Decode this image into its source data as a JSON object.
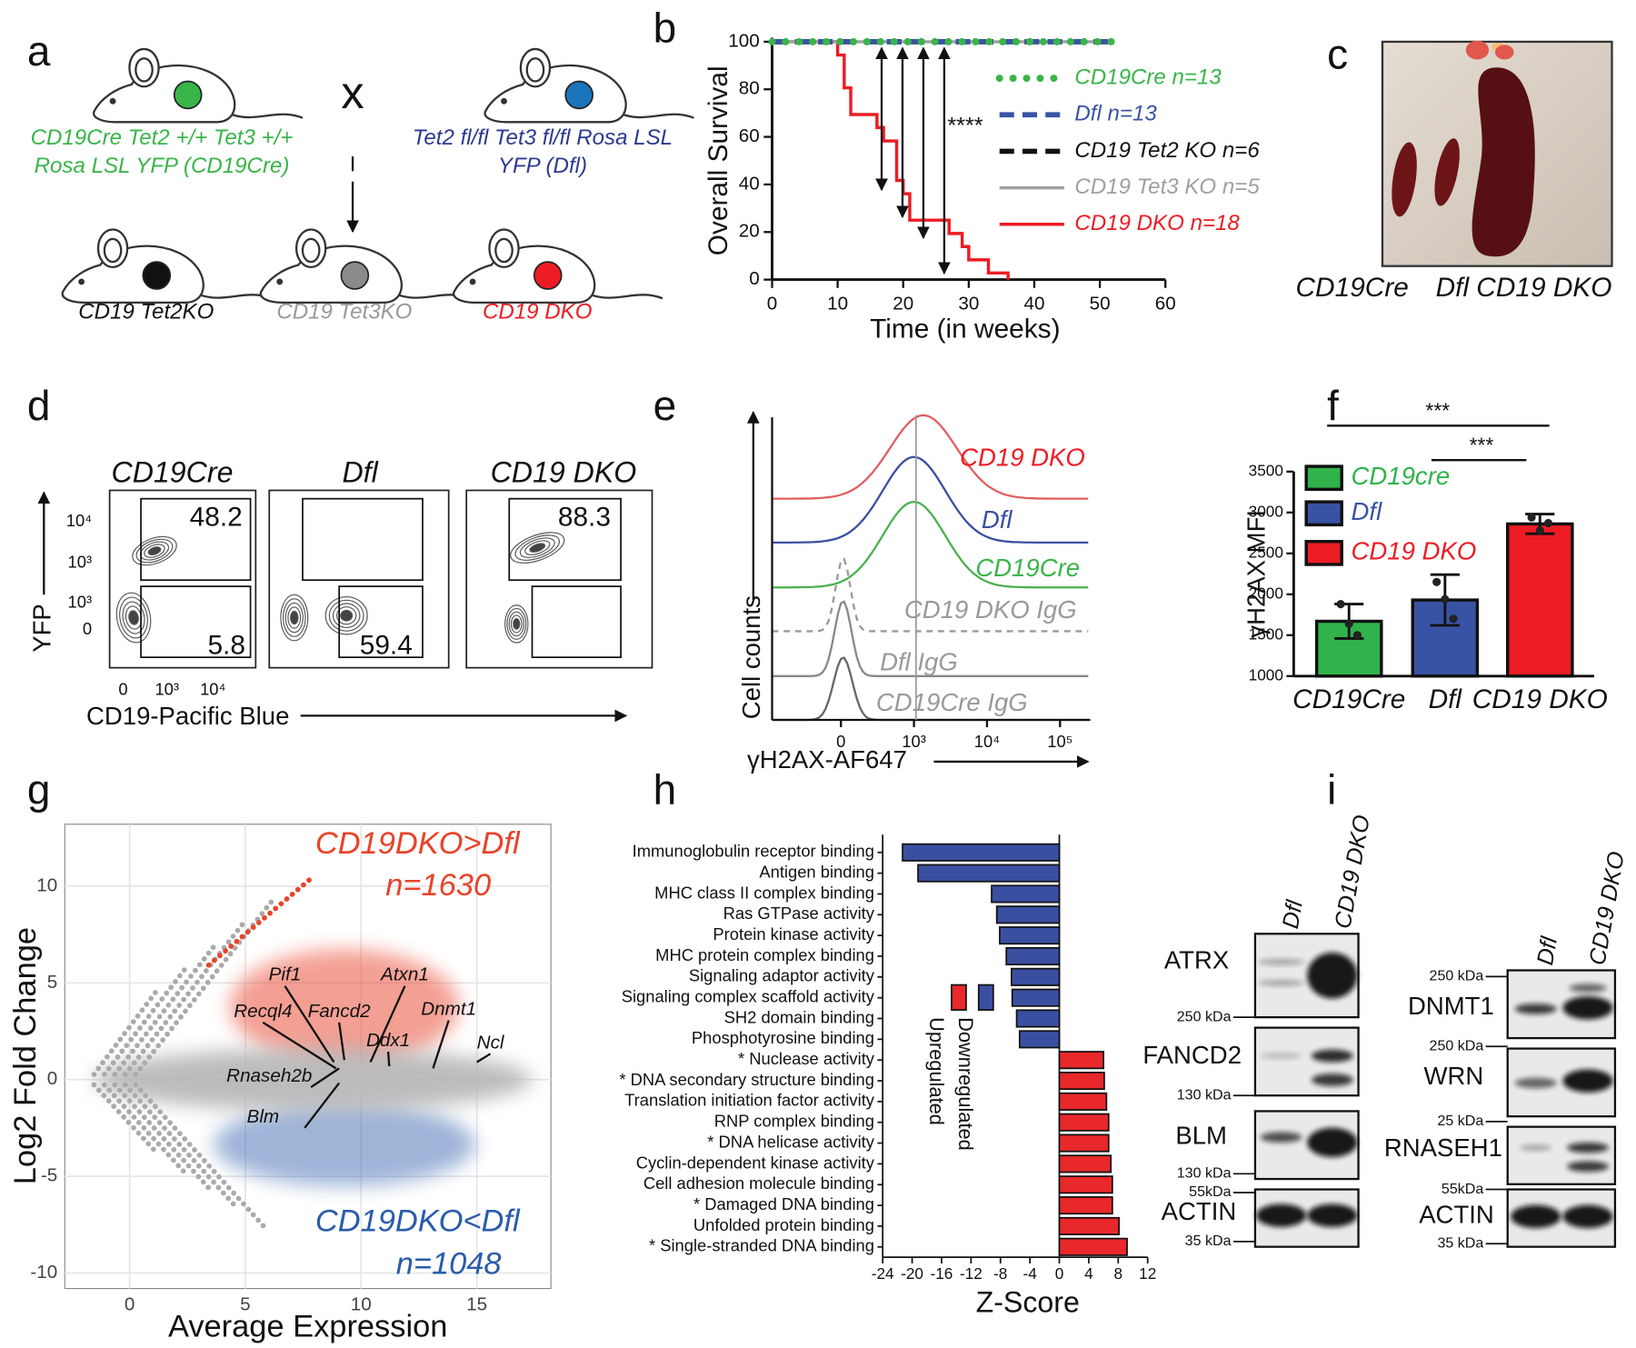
{
  "panel_labels": [
    "a",
    "b",
    "c",
    "d",
    "e",
    "f",
    "g",
    "h",
    "i"
  ],
  "panel_a": {
    "cross": "x",
    "parent1": [
      "CD19Cre Tet2 +/+ Tet3 +/+",
      "Rosa LSL YFP (CD19Cre)"
    ],
    "parent2": [
      "Tet2 fl/fl Tet3 fl/fl Rosa LSL",
      "YFP (Dfl)"
    ],
    "offspring": [
      "CD19 Tet2KO",
      "CD19 Tet3KO",
      "CD19 DKO"
    ]
  },
  "panel_c": {
    "labels": [
      "CD19Cre",
      "Dfl",
      "CD19 DKO"
    ]
  },
  "panel_d": {
    "titles": [
      "CD19Cre",
      "Dfl",
      "CD19 DKO"
    ],
    "gates": [
      48.2,
      5.8,
      59.4,
      88.3
    ],
    "yticks": [
      "10⁴",
      "10³",
      "10³",
      "0"
    ],
    "xticks": [
      "0",
      "10³",
      "10⁴"
    ],
    "ylabel": "YFP",
    "xlabel": "CD19-Pacific Blue"
  },
  "panel_e": {
    "labels": [
      "CD19 DKO",
      "Dfl",
      "CD19Cre",
      "CD19 DKO IgG",
      "Dfl IgG",
      "CD19Cre IgG"
    ],
    "xticks": [
      "0",
      "10³",
      "10⁴",
      "10⁵"
    ],
    "ylabel": "Cell counts",
    "xlabel": "γH2AX-AF647"
  },
  "panel_i": {
    "lanes_left": [
      "Dfl",
      "CD19 DKO"
    ],
    "lanes_right": [
      "Dfl",
      "CD19 DKO"
    ],
    "proteins": [
      "ATRX",
      "FANCD2",
      "BLM",
      "ACTIN",
      "DNMT1",
      "WRN",
      "RNASEH1",
      "ACTIN"
    ],
    "markers": [
      "250 kDa",
      "130 kDa",
      "130 kDa",
      "55kDa",
      "35 kDa",
      "250 kDa",
      "250 kDa",
      "25 kDa",
      "55kDa",
      "35 kDa"
    ]
  },
  "chart_data": [
    {
      "type": "line",
      "step": true,
      "xlabel": "Time (in weeks)",
      "ylabel": "Overall Survival",
      "annotation": "****",
      "xlim": [
        0,
        60
      ],
      "xticks": [
        0,
        10,
        20,
        30,
        40,
        50,
        60
      ],
      "ylim": [
        0,
        100
      ],
      "yticks": [
        0,
        20,
        40,
        60,
        80,
        100
      ],
      "series": [
        {
          "name": "CD19Cre n=13",
          "color": "#39b54a",
          "style": "dotted",
          "x": [
            0,
            52
          ],
          "values": [
            100,
            100
          ]
        },
        {
          "name": "Dfl n=13",
          "color": "#3a53a4",
          "style": "dashed",
          "x": [
            0,
            52
          ],
          "values": [
            100,
            100
          ]
        },
        {
          "name": "CD19 Tet2 KO n=6",
          "color": "#111111",
          "style": "dashed",
          "x": [
            0,
            52
          ],
          "values": [
            100,
            100
          ]
        },
        {
          "name": "CD19 Tet3 KO n=5",
          "color": "#a0a0a0",
          "style": "solid",
          "x": [
            0,
            52
          ],
          "values": [
            100,
            100
          ]
        },
        {
          "name": "CD19 DKO n=18",
          "color": "#ed1c24",
          "style": "solid",
          "x": [
            0,
            10,
            11,
            12,
            16,
            17,
            19,
            20,
            21,
            27,
            29,
            30,
            33,
            36
          ],
          "values": [
            100,
            94.4,
            80.6,
            69.4,
            63.9,
            58.3,
            41.7,
            36.1,
            25,
            19.4,
            13.9,
            8.3,
            2.8,
            0
          ]
        }
      ]
    },
    {
      "type": "bar",
      "ylabel": "γH2AX MFI",
      "categories": [
        "CD19Cre",
        "Dfl",
        "CD19 DKO"
      ],
      "values": [
        1670,
        1930,
        2860
      ],
      "errors": [
        210,
        310,
        120
      ],
      "points": [
        [
          1880,
          1640,
          1500
        ],
        [
          2150,
          1940,
          1700
        ],
        [
          2940,
          2780,
          2870
        ]
      ],
      "colors": [
        "#2fb34a",
        "#3953a4",
        "#ed1c24"
      ],
      "legend": [
        "CD19cre",
        "Dfl",
        "CD19 DKO"
      ],
      "significance": [
        "***",
        "***"
      ],
      "ylim": [
        1000,
        3500
      ],
      "yticks": [
        1000,
        1500,
        2000,
        2500,
        3000,
        3500
      ]
    },
    {
      "type": "scatter",
      "xlabel": "Average Expression",
      "ylabel": "Log2 Fold Change",
      "xlim": [
        -2.8,
        18.2
      ],
      "xticks": [
        0,
        5,
        10,
        15
      ],
      "ylim": [
        -10.8,
        13.2
      ],
      "yticks": [
        -10,
        -5,
        0,
        5,
        10
      ],
      "grid": true,
      "up_label": "CD19DKO>Dfl",
      "up_n": "n=1630",
      "up_color": "#e8432a",
      "down_label": "CD19DKO<Dfl",
      "down_n": "n=1048",
      "down_color": "#2a5caa",
      "genes": [
        "Pif1",
        "Atxn1",
        "Recql4",
        "Fancd2",
        "Ddx1",
        "Dnmt1",
        "Ncl",
        "Rnaseh2b",
        "Blm"
      ]
    },
    {
      "type": "barh",
      "xlabel": "Z-Score",
      "categories": [
        "Immunoglobulin receptor binding",
        "Antigen binding",
        "MHC class II complex binding",
        "Ras GTPase activity",
        "Protein kinase activity",
        "MHC protein complex binding",
        "Signaling adaptor activity",
        "Signaling complex scaffold activity",
        "SH2 domain binding",
        "Phosphotyrosine binding",
        "* Nuclease activity",
        "* DNA secondary structure binding",
        "Translation initiation factor activity",
        "RNP complex binding",
        "* DNA helicase activity",
        "Cyclin-dependent kinase activity",
        "Cell adhesion molecule binding",
        "* Damaged DNA binding",
        "Unfolded protein binding",
        "* Single-stranded DNA binding"
      ],
      "values": [
        -21.3,
        -19.2,
        -9.2,
        -8.5,
        -8.1,
        -7.2,
        -6.5,
        -6.4,
        -5.8,
        -5.4,
        6.0,
        6.1,
        6.4,
        6.7,
        6.7,
        7.0,
        7.2,
        7.2,
        8.1,
        9.2
      ],
      "legend": [
        {
          "name": "Upregulated",
          "color": "#e8282b"
        },
        {
          "name": "Downregulated",
          "color": "#3a4fa0"
        }
      ],
      "xlim": [
        -24,
        12
      ],
      "xticks": [
        -24,
        -20,
        -16,
        -12,
        -8,
        -4,
        0,
        4,
        8,
        12
      ]
    }
  ]
}
